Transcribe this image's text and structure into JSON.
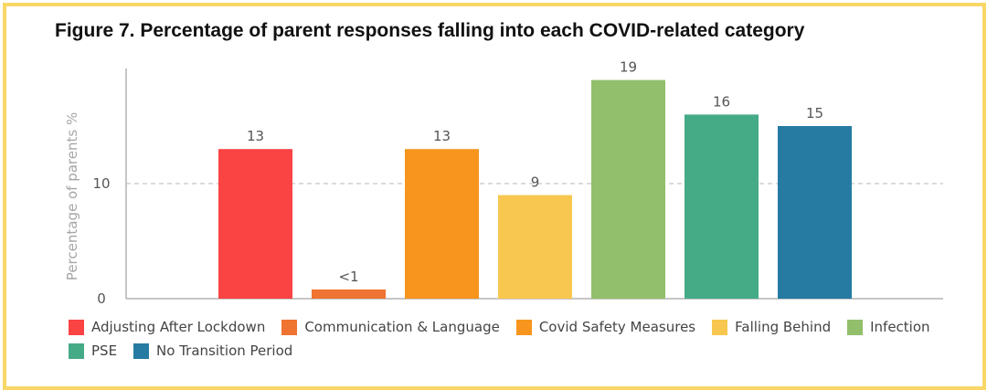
{
  "title": "Figure 7. Percentage of parent responses falling into each COVID-related category",
  "chart_data": {
    "type": "bar",
    "title": "Figure 7. Percentage of parent responses falling into each COVID-related category",
    "xlabel": "",
    "ylabel": "Percentage of parents %",
    "ylim": [
      0,
      20
    ],
    "yticks": [
      0,
      10
    ],
    "reference_line": 10,
    "grid": false,
    "legend_position": "bottom",
    "categories": [
      "Adjusting After Lockdown",
      "Communication & Language",
      "Covid Safety Measures",
      "Falling Behind",
      "Infection",
      "PSE",
      "No Transition Period"
    ],
    "values": [
      13,
      0.8,
      13,
      9,
      19,
      16,
      15
    ],
    "data_labels": [
      "13",
      "<1",
      "13",
      "9",
      "19",
      "16",
      "15"
    ],
    "colors": [
      "#fa4343",
      "#ef7331",
      "#f7951e",
      "#f8c74f",
      "#92bf6b",
      "#45ab87",
      "#267ba2"
    ]
  }
}
